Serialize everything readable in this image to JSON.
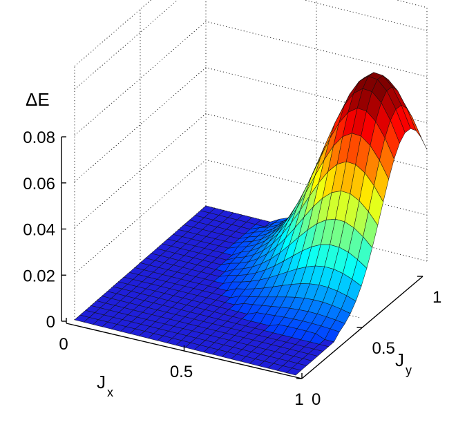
{
  "chart_data": {
    "type": "surface",
    "title": "",
    "zlabel": "ΔE",
    "xlabel_main": "J",
    "xlabel_sub": "x",
    "ylabel_main": "J",
    "ylabel_sub": "y",
    "xlim": [
      0,
      1
    ],
    "ylim": [
      0,
      1
    ],
    "zlim": [
      0,
      0.08
    ],
    "x_ticks": [
      "0",
      "0.5",
      "1"
    ],
    "y_ticks": [
      "0",
      "0.5",
      "1"
    ],
    "z_ticks": [
      "0",
      "0.02",
      "0.04",
      "0.06",
      "0.08"
    ],
    "grid": true,
    "colormap": "jet",
    "grid_points": 25,
    "peak": {
      "x": 0.85,
      "y": 0.85,
      "z": 0.085
    },
    "base_color": "#1f1fd9"
  }
}
